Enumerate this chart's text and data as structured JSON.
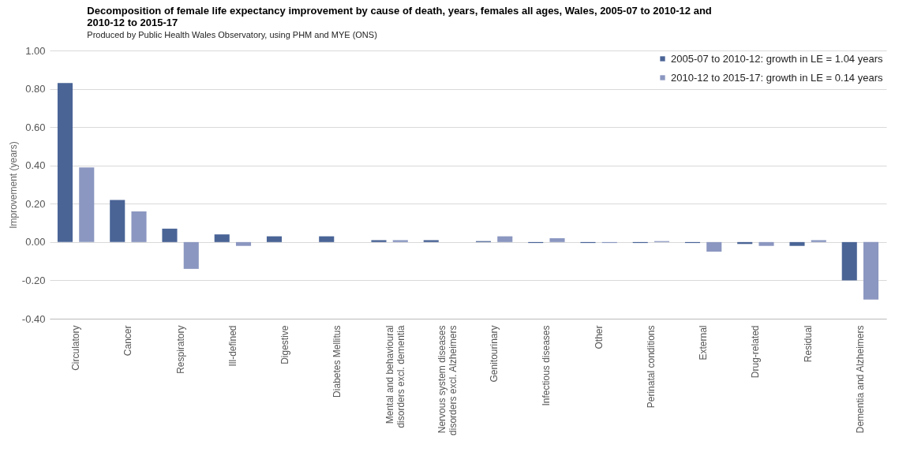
{
  "chart_data": {
    "type": "bar",
    "title": "Decomposition of female life expectancy improvement by cause of death, years, females all ages, Wales, 2005-07 to 2010-12 and\n2010-12 to 2015-17",
    "subtitle": "Produced by Public Health Wales Observatory, using PHM and MYE (ONS)",
    "ylabel": "Improvement (years)",
    "categories": [
      "Circulatory",
      "Cancer",
      "Respiratory",
      "Ill-defined",
      "Digestive",
      "Diabetes Mellitus",
      "Mental and behavioural\ndisorders excl. dementia",
      "Nervous system diseases\ndisorders excl. Alzheimers",
      "Genitourinary",
      "Infectious diseases",
      "Other",
      "Perinatal conditions",
      "External",
      "Drug-related",
      "Residual",
      "Dementia and Alzheimers"
    ],
    "series": [
      {
        "name": "2005-07 to 2010-12: growth in LE = 1.04 years",
        "color": "#4a6496",
        "values": [
          0.83,
          0.22,
          0.07,
          0.04,
          0.03,
          0.03,
          0.01,
          0.01,
          0.005,
          -0.005,
          -0.005,
          -0.005,
          -0.005,
          -0.01,
          -0.02,
          -0.2
        ]
      },
      {
        "name": "2010-12 to 2015-17: growth in LE = 0.14 years",
        "color": "#8b97c0",
        "values": [
          0.39,
          0.16,
          -0.14,
          -0.02,
          0,
          0,
          0.01,
          0,
          0.03,
          0.02,
          -0.005,
          0.005,
          -0.05,
          -0.02,
          0.01,
          -0.3
        ]
      }
    ],
    "ylim": [
      -0.4,
      1
    ],
    "yticks": [
      {
        "value": -0.4,
        "label": "-0.40"
      },
      {
        "value": -0.2,
        "label": "-0.20"
      },
      {
        "value": 0,
        "label": "0.00"
      },
      {
        "value": 0.2,
        "label": "0.20"
      },
      {
        "value": 0.4,
        "label": "0.40"
      },
      {
        "value": 0.6,
        "label": "0.60"
      },
      {
        "value": 0.8,
        "label": "0.80"
      },
      {
        "value": 1,
        "label": "1.00"
      }
    ],
    "grid": "y",
    "legend": "top right"
  }
}
